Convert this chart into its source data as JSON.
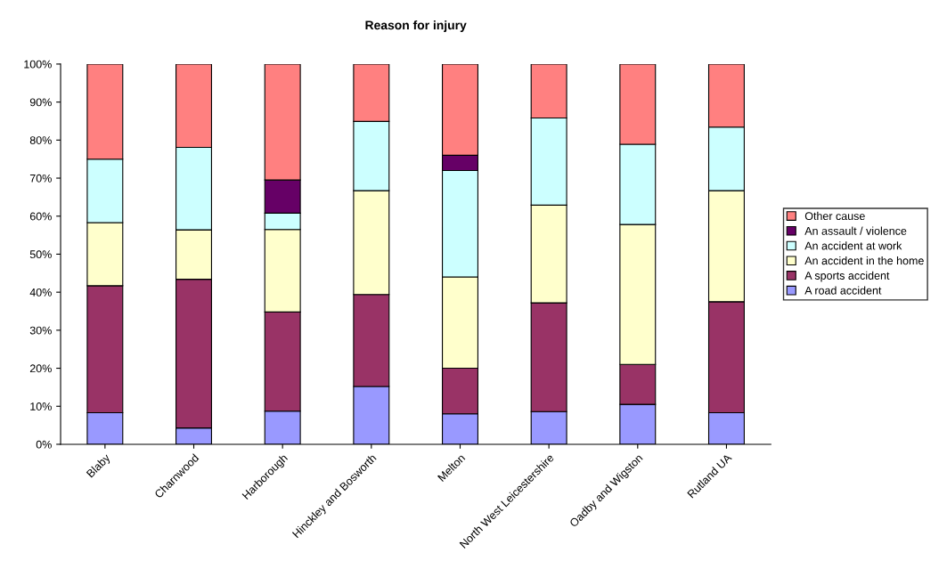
{
  "chart_data": {
    "type": "bar",
    "title": "Reason for injury",
    "stacked": true,
    "legend": "right",
    "grid": false,
    "categories": [
      "Blaby",
      "Charnwood",
      "Harborough",
      "Hinckley and Bosworth",
      "Melton",
      "North West Leicestershire",
      "Oadby and Wigston",
      "Rutland UA"
    ],
    "series": [
      {
        "name": "A road accident",
        "color": "#9999ff",
        "values": [
          8.3,
          4.3,
          8.7,
          15.2,
          8.0,
          8.6,
          10.5,
          8.3
        ]
      },
      {
        "name": "A sports accident",
        "color": "#993366",
        "values": [
          33.4,
          39.1,
          26.1,
          24.2,
          12.0,
          28.6,
          10.5,
          29.2
        ]
      },
      {
        "name": "An accident in the home",
        "color": "#ffffcc",
        "values": [
          16.6,
          13.0,
          21.7,
          27.3,
          24.0,
          25.7,
          36.8,
          29.2
        ]
      },
      {
        "name": "An accident at work",
        "color": "#ccffff",
        "values": [
          16.7,
          21.7,
          4.3,
          18.2,
          28.0,
          22.9,
          21.1,
          16.7
        ]
      },
      {
        "name": "An assault / violence",
        "color": "#660066",
        "values": [
          null,
          null,
          8.7,
          null,
          4.0,
          null,
          null,
          null
        ]
      },
      {
        "name": "Other cause",
        "color": "#ff8080",
        "values": [
          25.0,
          21.9,
          30.5,
          15.1,
          24.0,
          14.2,
          21.1,
          16.6
        ]
      }
    ],
    "ylim": [
      0,
      100
    ],
    "yticks": [
      {
        "value": 0,
        "label": "0%"
      },
      {
        "value": 10,
        "label": "10%"
      },
      {
        "value": 20,
        "label": "20%"
      },
      {
        "value": 30,
        "label": "30%"
      },
      {
        "value": 40,
        "label": "40%"
      },
      {
        "value": 50,
        "label": "50%"
      },
      {
        "value": 60,
        "label": "60%"
      },
      {
        "value": 70,
        "label": "70%"
      },
      {
        "value": 80,
        "label": "80%"
      },
      {
        "value": 90,
        "label": "90%"
      },
      {
        "value": 100,
        "label": "100%"
      }
    ]
  }
}
